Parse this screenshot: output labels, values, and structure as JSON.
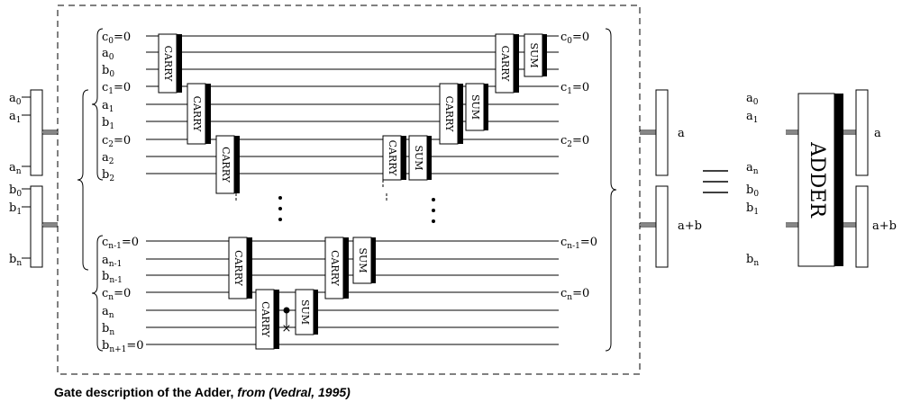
{
  "caption": {
    "prefix": "Gate description of the Adder, ",
    "suffix": "from (Vedral, 1995)"
  },
  "gates": {
    "carry": "CARRY",
    "sum": "SUM",
    "adder": "ADDER"
  },
  "left_inputs": [
    "a0",
    "a1",
    "an",
    "b0",
    "b1",
    "bn"
  ],
  "left_inputs_fmt": [
    {
      "b": "a",
      "s": "0"
    },
    {
      "b": "a",
      "s": "1"
    },
    {
      "b": "a",
      "s": "n"
    },
    {
      "b": "b",
      "s": "0"
    },
    {
      "b": "b",
      "s": "1"
    },
    {
      "b": "b",
      "s": "n"
    }
  ],
  "wire_labels": [
    {
      "b": "c",
      "s": "0",
      "e": "=0"
    },
    {
      "b": "a",
      "s": "0",
      "e": ""
    },
    {
      "b": "b",
      "s": "0",
      "e": ""
    },
    {
      "b": "c",
      "s": "1",
      "e": "=0"
    },
    {
      "b": "a",
      "s": "1",
      "e": ""
    },
    {
      "b": "b",
      "s": "1",
      "e": ""
    },
    {
      "b": "c",
      "s": "2",
      "e": "=0"
    },
    {
      "b": "a",
      "s": "2",
      "e": ""
    },
    {
      "b": "b",
      "s": "2",
      "e": ""
    },
    {
      "b": "c",
      "s": "n-1",
      "e": "=0"
    },
    {
      "b": "a",
      "s": "n-1",
      "e": ""
    },
    {
      "b": "b",
      "s": "n-1",
      "e": ""
    },
    {
      "b": "c",
      "s": "n",
      "e": "=0"
    },
    {
      "b": "a",
      "s": "n",
      "e": ""
    },
    {
      "b": "b",
      "s": "n",
      "e": ""
    },
    {
      "b": "b",
      "s": "n+1",
      "e": "=0"
    }
  ],
  "right_wire_labels": [
    {
      "b": "c",
      "s": "0",
      "e": "=0"
    },
    {
      "b": "c",
      "s": "1",
      "e": "=0"
    },
    {
      "b": "c",
      "s": "2",
      "e": "=0"
    },
    {
      "b": "c",
      "s": "n-1",
      "e": "=0"
    },
    {
      "b": "c",
      "s": "n",
      "e": "=0"
    }
  ],
  "outputs": {
    "a": "a",
    "ab": "a+b"
  },
  "equiv_symbol": "≡"
}
